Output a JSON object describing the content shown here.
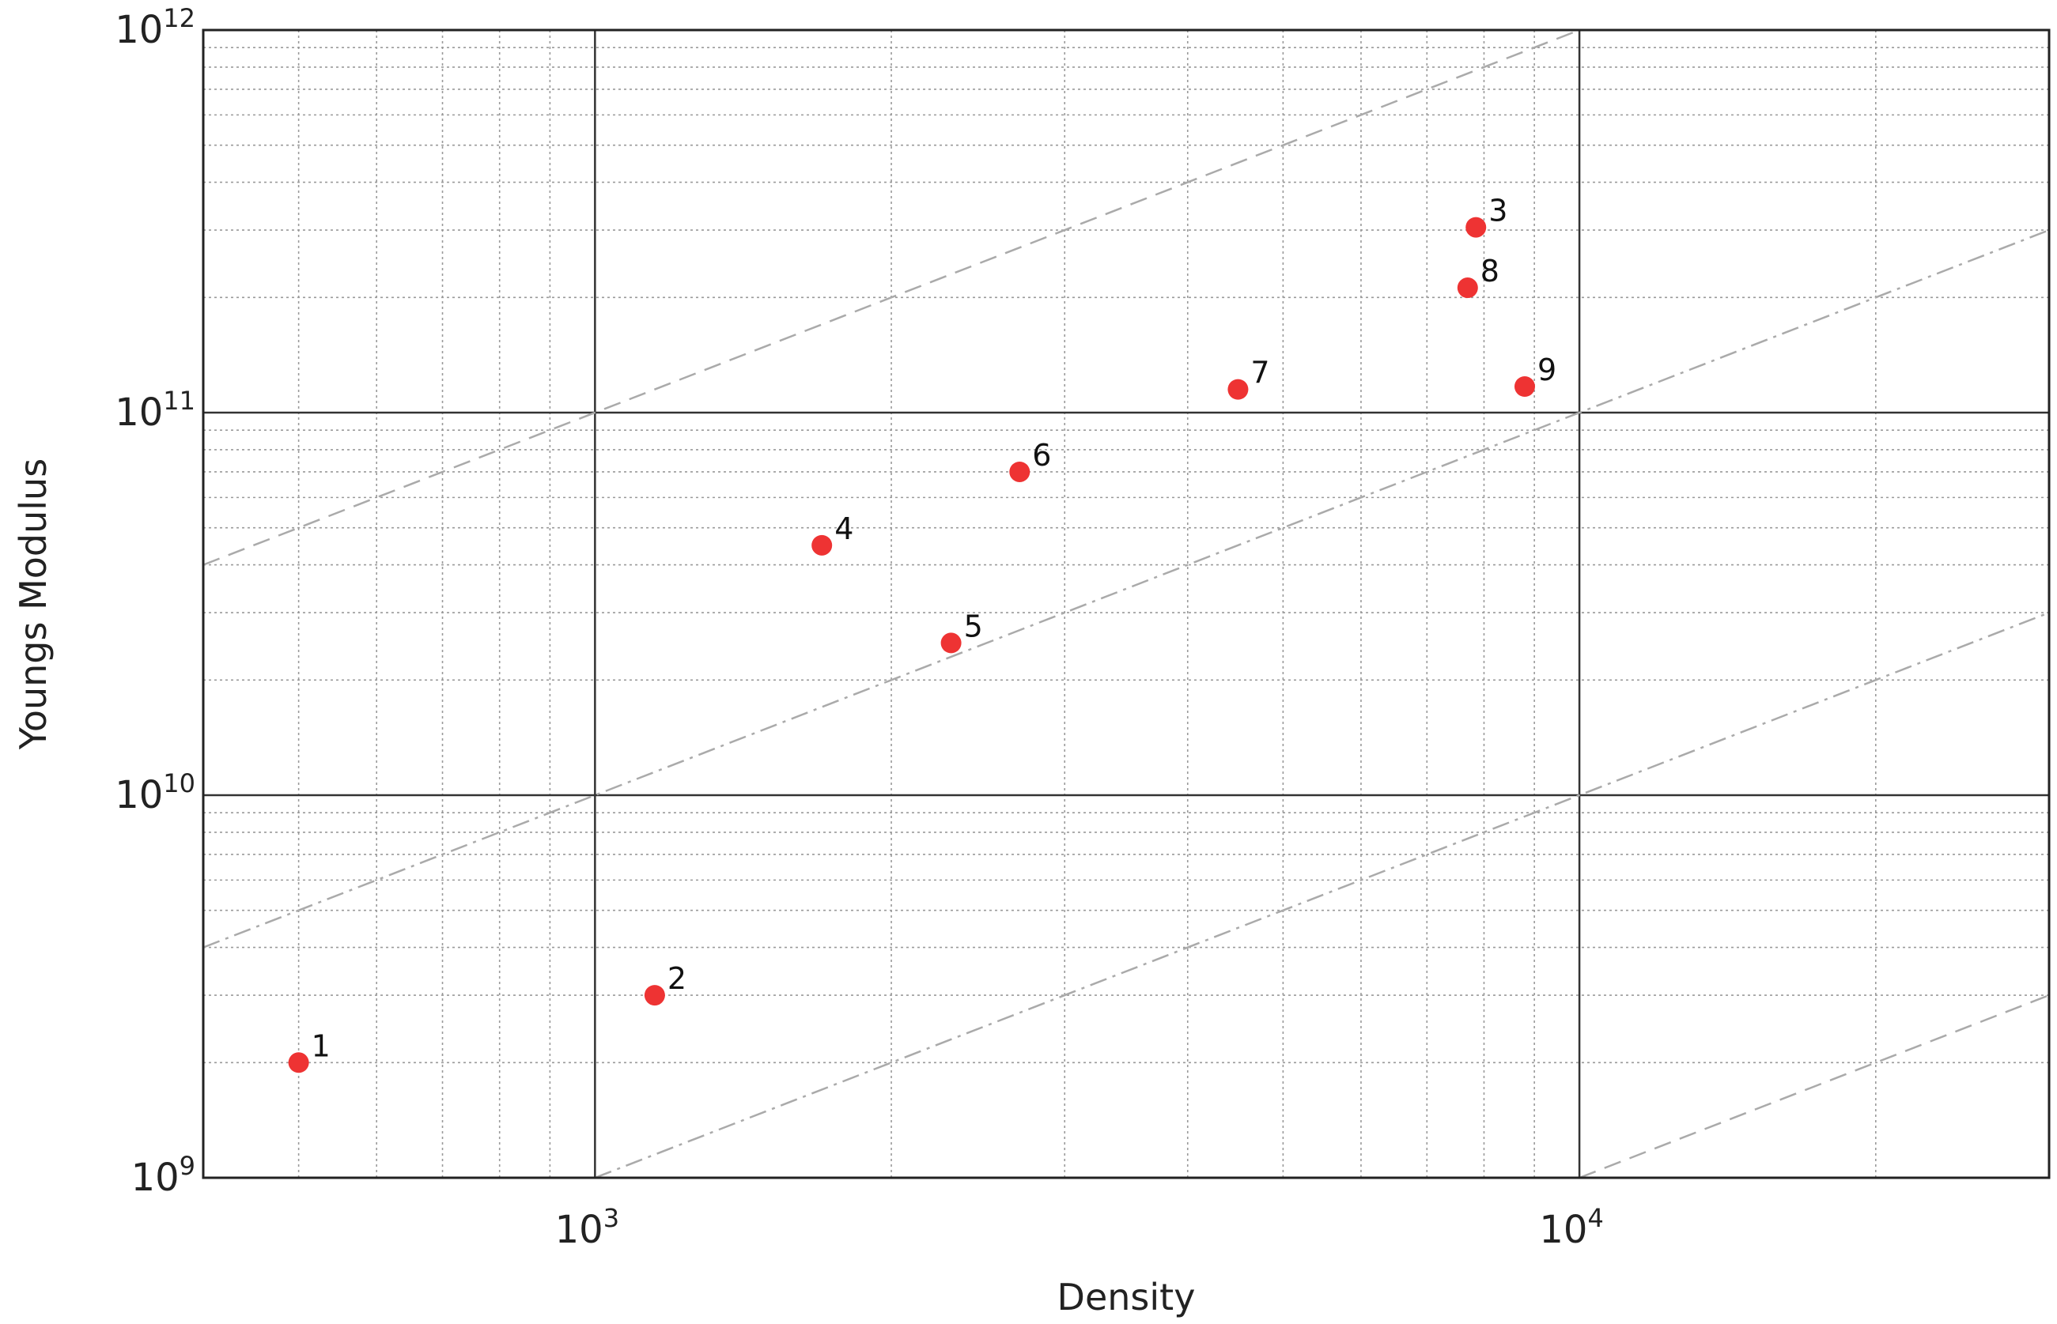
{
  "chart_data": {
    "type": "scatter",
    "xscale": "log",
    "yscale": "log",
    "xlabel": "Density",
    "ylabel": "Youngs Modulus",
    "xlim": [
      400,
      30000
    ],
    "ylim": [
      1000000000,
      1000000000000
    ],
    "grid": "major and minor",
    "x_ticks": [
      {
        "value": 1000,
        "base": "10",
        "exp": "3"
      },
      {
        "value": 10000,
        "base": "10",
        "exp": "4"
      }
    ],
    "y_ticks": [
      {
        "value": 1000000000,
        "base": "10",
        "exp": "9"
      },
      {
        "value": 10000000000,
        "base": "10",
        "exp": "10"
      },
      {
        "value": 100000000000,
        "base": "10",
        "exp": "11"
      },
      {
        "value": 1000000000000,
        "base": "10",
        "exp": "12"
      }
    ],
    "marker_color": "#ee3333",
    "guide_line_color": "#aaaaaa",
    "guide_lines": [
      {
        "style": "dashed",
        "E_over_rho": 100000000
      },
      {
        "style": "dash-dot",
        "E_over_rho": 10000000
      },
      {
        "style": "dash-dot",
        "E_over_rho": 1000000
      },
      {
        "style": "dashed",
        "E_over_rho": 100000
      }
    ],
    "points": [
      {
        "label": "1",
        "x": 500,
        "y": 2000000000
      },
      {
        "label": "2",
        "x": 1150,
        "y": 3000000000
      },
      {
        "label": "3",
        "x": 7850,
        "y": 305000000000
      },
      {
        "label": "4",
        "x": 1700,
        "y": 45000000000
      },
      {
        "label": "5",
        "x": 2300,
        "y": 25000000000
      },
      {
        "label": "6",
        "x": 2700,
        "y": 70000000000
      },
      {
        "label": "7",
        "x": 4500,
        "y": 115000000000
      },
      {
        "label": "8",
        "x": 7700,
        "y": 212000000000
      },
      {
        "label": "9",
        "x": 8800,
        "y": 117000000000
      }
    ]
  }
}
